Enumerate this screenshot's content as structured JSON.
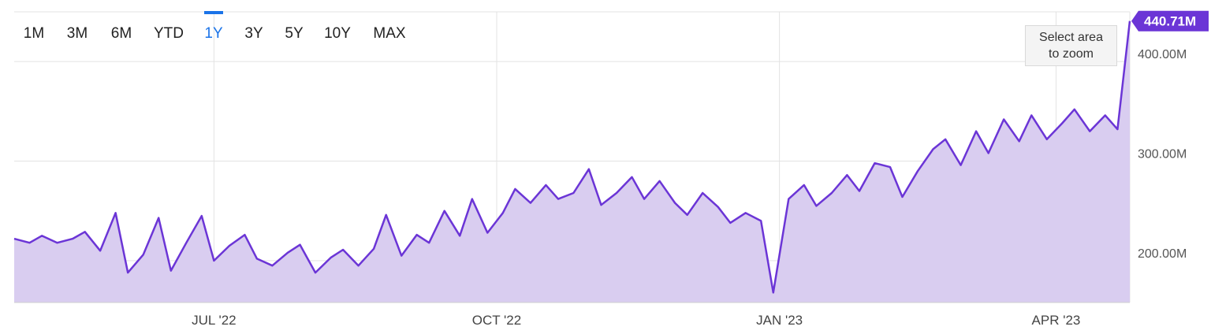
{
  "range_selector": {
    "options": [
      "1M",
      "3M",
      "6M",
      "YTD",
      "1Y",
      "3Y",
      "5Y",
      "10Y",
      "MAX"
    ],
    "selected": "1Y"
  },
  "zoom_hint": {
    "line1": "Select area",
    "line2": "to zoom"
  },
  "colors": {
    "line": "#6b35d6",
    "fill": "#d9cdf0",
    "grid": "#e3e3e3",
    "accent": "#1a73e8",
    "badge": "#6b35d6"
  },
  "chart_data": {
    "type": "area",
    "x_range": [
      "2022-04-27",
      "2023-04-25"
    ],
    "ylim": [
      158000000,
      450000000
    ],
    "y_ticks": [
      "200.00M",
      "300.00M",
      "400.00M"
    ],
    "y_tick_values": [
      200000000,
      300000000,
      400000000
    ],
    "x_ticks": [
      {
        "label": "JUL '22",
        "date": "2022-07-01"
      },
      {
        "label": "OCT '22",
        "date": "2022-10-01"
      },
      {
        "label": "JAN '23",
        "date": "2023-01-01"
      },
      {
        "label": "APR '23",
        "date": "2023-04-01"
      }
    ],
    "last_value_label": "440.71M",
    "grid": true,
    "series": [
      {
        "points": [
          [
            "2022-04-27",
            222000000
          ],
          [
            "2022-05-02",
            218000000
          ],
          [
            "2022-05-06",
            225000000
          ],
          [
            "2022-05-11",
            218000000
          ],
          [
            "2022-05-16",
            222000000
          ],
          [
            "2022-05-20",
            229000000
          ],
          [
            "2022-05-25",
            210000000
          ],
          [
            "2022-05-30",
            248000000
          ],
          [
            "2022-06-03",
            188000000
          ],
          [
            "2022-06-08",
            206000000
          ],
          [
            "2022-06-13",
            243000000
          ],
          [
            "2022-06-17",
            190000000
          ],
          [
            "2022-06-22",
            218000000
          ],
          [
            "2022-06-27",
            245000000
          ],
          [
            "2022-07-01",
            200000000
          ],
          [
            "2022-07-06",
            215000000
          ],
          [
            "2022-07-11",
            226000000
          ],
          [
            "2022-07-15",
            202000000
          ],
          [
            "2022-07-20",
            195000000
          ],
          [
            "2022-07-25",
            208000000
          ],
          [
            "2022-07-29",
            216000000
          ],
          [
            "2022-08-03",
            188000000
          ],
          [
            "2022-08-08",
            203000000
          ],
          [
            "2022-08-12",
            211000000
          ],
          [
            "2022-08-17",
            195000000
          ],
          [
            "2022-08-22",
            212000000
          ],
          [
            "2022-08-26",
            246000000
          ],
          [
            "2022-08-31",
            205000000
          ],
          [
            "2022-09-05",
            226000000
          ],
          [
            "2022-09-09",
            218000000
          ],
          [
            "2022-09-14",
            250000000
          ],
          [
            "2022-09-19",
            225000000
          ],
          [
            "2022-09-23",
            262000000
          ],
          [
            "2022-09-28",
            228000000
          ],
          [
            "2022-10-03",
            248000000
          ],
          [
            "2022-10-07",
            272000000
          ],
          [
            "2022-10-12",
            258000000
          ],
          [
            "2022-10-17",
            276000000
          ],
          [
            "2022-10-21",
            262000000
          ],
          [
            "2022-10-26",
            268000000
          ],
          [
            "2022-10-31",
            292000000
          ],
          [
            "2022-11-04",
            256000000
          ],
          [
            "2022-11-09",
            268000000
          ],
          [
            "2022-11-14",
            284000000
          ],
          [
            "2022-11-18",
            262000000
          ],
          [
            "2022-11-23",
            280000000
          ],
          [
            "2022-11-28",
            258000000
          ],
          [
            "2022-12-02",
            246000000
          ],
          [
            "2022-12-07",
            268000000
          ],
          [
            "2022-12-12",
            254000000
          ],
          [
            "2022-12-16",
            238000000
          ],
          [
            "2022-12-21",
            248000000
          ],
          [
            "2022-12-26",
            240000000
          ],
          [
            "2022-12-30",
            168000000
          ],
          [
            "2023-01-04",
            262000000
          ],
          [
            "2023-01-09",
            276000000
          ],
          [
            "2023-01-13",
            255000000
          ],
          [
            "2023-01-18",
            268000000
          ],
          [
            "2023-01-23",
            286000000
          ],
          [
            "2023-01-27",
            270000000
          ],
          [
            "2023-02-01",
            298000000
          ],
          [
            "2023-02-06",
            294000000
          ],
          [
            "2023-02-10",
            264000000
          ],
          [
            "2023-02-15",
            290000000
          ],
          [
            "2023-02-20",
            312000000
          ],
          [
            "2023-02-24",
            322000000
          ],
          [
            "2023-03-01",
            296000000
          ],
          [
            "2023-03-06",
            330000000
          ],
          [
            "2023-03-10",
            308000000
          ],
          [
            "2023-03-15",
            342000000
          ],
          [
            "2023-03-20",
            320000000
          ],
          [
            "2023-03-24",
            346000000
          ],
          [
            "2023-03-29",
            322000000
          ],
          [
            "2023-04-03",
            338000000
          ],
          [
            "2023-04-07",
            352000000
          ],
          [
            "2023-04-12",
            330000000
          ],
          [
            "2023-04-17",
            346000000
          ],
          [
            "2023-04-21",
            332000000
          ],
          [
            "2023-04-25",
            440710000
          ]
        ]
      }
    ]
  }
}
